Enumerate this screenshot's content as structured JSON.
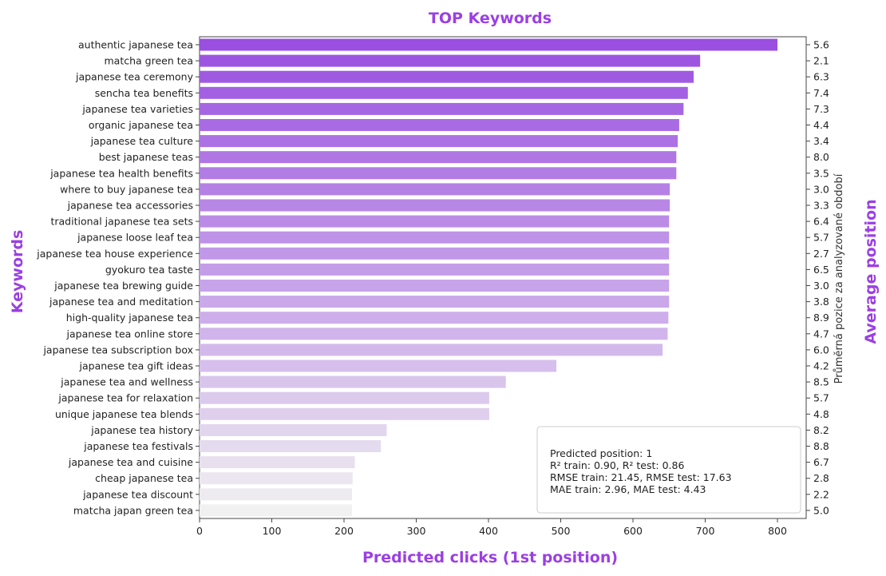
{
  "chart_data": {
    "type": "bar",
    "orientation": "horizontal",
    "title": "TOP Keywords",
    "xlabel": "Predicted clicks (1st position)",
    "ylabel": "Keywords",
    "right_axis_label": "Average position",
    "right_axis_inner_label": "Průměrná pozice za analyzované období",
    "xlim": [
      0,
      840
    ],
    "xticks": [
      "0",
      "100",
      "200",
      "300",
      "400",
      "500",
      "600",
      "700",
      "800"
    ],
    "grid": false,
    "colors": {
      "title": "#9b3fe3",
      "bar_start": "#9a4fe0",
      "bar_end": "#f1f1f1"
    },
    "annotation": [
      "Predicted position: 1",
      "R² train: 0.90, R² test: 0.86",
      "RMSE train: 21.45, RMSE test: 17.63",
      "MAE train: 2.96, MAE test: 4.43"
    ],
    "categories": [
      "authentic japanese tea",
      "matcha green tea",
      "japanese tea ceremony",
      "sencha tea benefits",
      "japanese tea varieties",
      "organic japanese tea",
      "japanese tea culture",
      "best japanese teas",
      "japanese tea health benefits",
      "where to buy japanese tea",
      "japanese tea accessories",
      "traditional japanese tea sets",
      "japanese loose leaf tea",
      "japanese tea house experience",
      "gyokuro tea taste",
      "japanese tea brewing guide",
      "japanese tea and meditation",
      "high-quality japanese tea",
      "japanese tea online store",
      "japanese tea subscription box",
      "japanese tea gift ideas",
      "japanese tea and wellness",
      "japanese tea for relaxation",
      "unique japanese tea blends",
      "japanese tea history",
      "japanese tea festivals",
      "japanese tea and cuisine",
      "cheap japanese tea",
      "japanese tea discount",
      "matcha japan green tea"
    ],
    "values": [
      800,
      693,
      684,
      676,
      670,
      664,
      662,
      660,
      660,
      651,
      651,
      650,
      650,
      650,
      650,
      650,
      650,
      649,
      648,
      641,
      494,
      424,
      401,
      401,
      259,
      251,
      215,
      212,
      211,
      211
    ],
    "avg_position": [
      "5.6",
      "2.1",
      "6.3",
      "7.4",
      "7.3",
      "4.4",
      "3.4",
      "8.0",
      "3.5",
      "3.0",
      "3.3",
      "6.4",
      "5.7",
      "2.7",
      "6.5",
      "3.0",
      "3.8",
      "8.9",
      "4.7",
      "6.0",
      "4.2",
      "8.5",
      "5.7",
      "4.8",
      "8.2",
      "8.8",
      "6.7",
      "2.8",
      "2.2",
      "5.0"
    ]
  }
}
